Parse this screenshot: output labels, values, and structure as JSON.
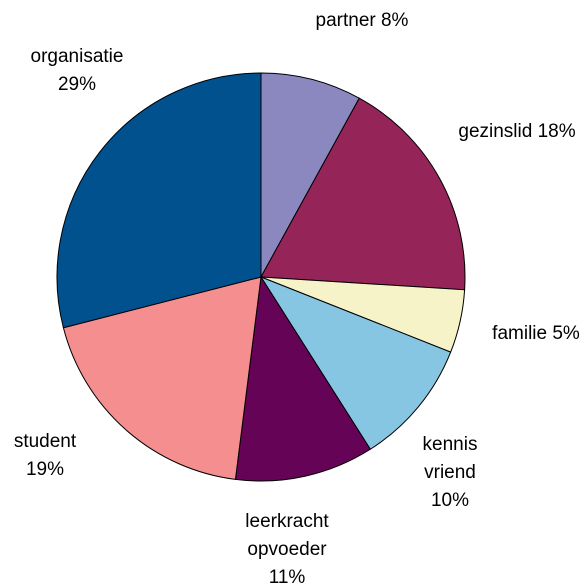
{
  "chart_data": {
    "type": "pie",
    "title": "",
    "start_angle_deg": 0,
    "direction": "clockwise",
    "slices": [
      {
        "name": "partner",
        "label_lines": [
          "partner 8%"
        ],
        "value": 8,
        "color": "#8b88c0"
      },
      {
        "name": "gezinslid",
        "label_lines": [
          "gezinslid 18%"
        ],
        "value": 18,
        "color": "#952458"
      },
      {
        "name": "familie",
        "label_lines": [
          "familie 5%"
        ],
        "value": 5,
        "color": "#f7f3c9"
      },
      {
        "name": "kennis vriend",
        "label_lines": [
          "kennis",
          "vriend",
          "10%"
        ],
        "value": 10,
        "color": "#87c6e3"
      },
      {
        "name": "leerkracht opvoeder",
        "label_lines": [
          "leerkracht",
          "opvoeder",
          "11%"
        ],
        "value": 11,
        "color": "#650456"
      },
      {
        "name": "student",
        "label_lines": [
          "student",
          "19%"
        ],
        "value": 19,
        "color": "#f48e8f"
      },
      {
        "name": "organisatie",
        "label_lines": [
          "organisatie",
          "29%"
        ],
        "value": 29,
        "color": "#02518f"
      }
    ]
  }
}
